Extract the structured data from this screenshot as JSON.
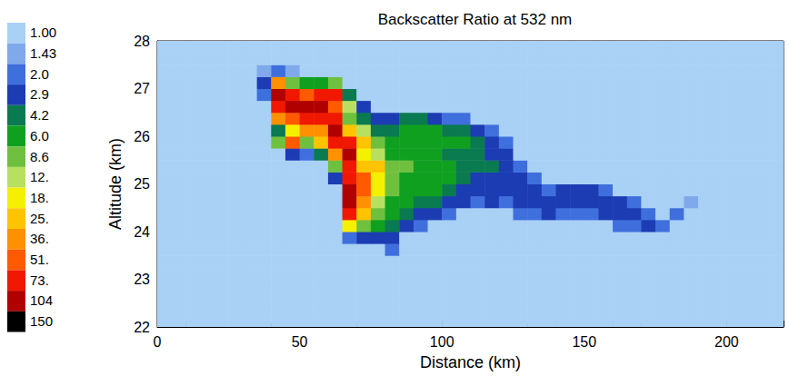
{
  "chart_data": {
    "type": "heatmap",
    "title": "Backscatter Ratio at 532 nm",
    "x_label": "Distance (km)",
    "y_label": "Altitude (km)",
    "xlim": [
      0,
      220
    ],
    "xticks": [
      0,
      50,
      100,
      150,
      200
    ],
    "ylim": [
      22,
      28
    ],
    "yticks": [
      22,
      23,
      24,
      25,
      26,
      27,
      28
    ],
    "grid": false,
    "x_edges": [
      0,
      5,
      10,
      15,
      20,
      25,
      30,
      35,
      40,
      45,
      50,
      55,
      60,
      65,
      70,
      75,
      80,
      85,
      90,
      95,
      100,
      105,
      110,
      115,
      120,
      125,
      130,
      135,
      140,
      145,
      150,
      155,
      160,
      165,
      170,
      175,
      180,
      185,
      190,
      195,
      200,
      205,
      210,
      215,
      220
    ],
    "y_edges": [
      22,
      22.25,
      22.5,
      22.75,
      23,
      23.25,
      23.5,
      23.75,
      24,
      24.25,
      24.5,
      24.75,
      25,
      25.25,
      25.5,
      25.75,
      26,
      26.25,
      26.5,
      26.75,
      27,
      27.25,
      27.5,
      27.75,
      28
    ],
    "cells": [
      [
        1,
        1,
        1,
        1,
        1,
        1,
        1,
        1,
        1,
        1,
        1,
        1,
        1,
        1,
        1,
        1,
        1,
        1,
        1,
        1,
        1,
        1,
        1,
        1,
        1,
        1,
        1,
        1,
        1,
        1,
        1,
        1,
        1,
        1,
        1,
        1,
        1,
        1,
        1,
        1,
        1,
        1,
        1,
        1
      ],
      [
        1,
        1,
        1,
        1,
        1,
        1,
        1,
        1,
        1,
        1,
        1,
        1,
        1,
        1,
        1,
        1,
        1,
        1,
        1,
        1,
        1,
        1,
        1,
        1,
        1,
        1,
        1,
        1,
        1,
        1,
        1,
        1,
        1,
        1,
        1,
        1,
        1,
        1,
        1,
        1,
        1,
        1,
        1,
        1
      ],
      [
        1,
        1,
        1,
        1,
        1,
        1,
        1,
        1,
        1,
        1,
        1,
        1,
        1,
        1,
        1,
        1,
        1,
        1,
        1,
        1,
        1,
        1,
        1,
        1,
        1,
        1,
        1,
        1,
        1,
        1,
        1,
        1,
        1,
        1,
        1,
        1,
        1,
        1,
        1,
        1,
        1,
        1,
        1,
        1
      ],
      [
        1,
        1,
        1,
        1,
        1,
        1,
        1,
        1,
        1,
        1,
        1,
        1,
        1,
        1,
        1,
        1,
        1,
        1,
        1,
        1,
        1,
        1,
        1,
        1,
        1,
        1,
        1,
        1,
        1,
        1,
        1,
        1,
        1,
        1,
        1,
        1,
        1,
        1,
        1,
        1,
        1,
        1,
        1,
        1
      ],
      [
        1,
        1,
        1,
        1,
        1,
        1,
        1,
        1,
        1,
        1,
        1,
        1,
        1,
        1,
        1,
        1,
        1,
        1,
        1,
        1,
        1,
        1,
        1,
        1,
        1,
        1,
        1,
        1,
        1,
        1,
        1,
        1,
        1,
        1,
        1,
        1,
        1,
        1,
        1,
        1,
        1,
        1,
        1,
        1
      ],
      [
        1,
        1,
        1,
        1,
        1,
        1,
        1,
        1,
        1,
        1,
        1,
        1,
        1,
        1,
        1,
        1,
        1,
        1,
        1,
        1,
        1,
        1,
        1,
        1,
        1,
        1,
        1,
        1,
        1,
        1,
        1,
        1,
        1,
        1,
        1,
        1,
        1,
        1,
        1,
        1,
        1,
        1,
        1,
        1
      ],
      [
        1,
        1,
        1,
        1,
        1,
        1,
        1,
        1,
        1,
        1,
        1,
        1,
        1,
        1,
        1,
        1,
        2.0,
        1,
        1,
        1,
        1,
        1,
        1,
        1,
        1,
        1,
        1,
        1,
        1,
        1,
        1,
        1,
        1,
        1,
        1,
        1,
        1,
        1,
        1,
        1,
        1,
        1,
        1,
        1
      ],
      [
        1,
        1,
        1,
        1,
        1,
        1,
        1,
        1,
        1,
        1,
        1,
        1,
        1,
        2.0,
        2.9,
        2.9,
        2.9,
        1,
        1,
        1,
        1,
        1,
        1,
        1,
        1,
        1,
        1,
        1,
        1,
        1,
        1,
        1,
        1,
        1,
        1,
        1,
        1,
        1,
        1,
        1,
        1,
        1,
        1,
        1
      ],
      [
        1,
        1,
        1,
        1,
        1,
        1,
        1,
        1,
        1,
        1,
        1,
        1,
        1,
        18,
        8.6,
        6.0,
        4.2,
        2.9,
        2.0,
        1,
        1,
        1,
        1,
        1,
        1,
        1,
        1,
        1,
        1,
        1,
        1,
        1,
        2.0,
        2.0,
        2.9,
        2.0,
        1,
        1,
        1,
        1,
        1,
        1,
        1,
        1
      ],
      [
        1,
        1,
        1,
        1,
        1,
        1,
        1,
        1,
        1,
        1,
        1,
        1,
        1,
        73,
        25,
        8.6,
        6.0,
        4.2,
        2.9,
        2.9,
        2.0,
        1,
        1,
        1,
        1,
        2.0,
        2.0,
        2.9,
        2.0,
        2.0,
        2.0,
        2.9,
        2.9,
        2.9,
        2.0,
        1,
        2.0,
        1,
        1,
        1,
        1,
        1,
        1,
        1
      ],
      [
        1,
        1,
        1,
        1,
        1,
        1,
        1,
        1,
        1,
        1,
        1,
        1,
        1,
        104,
        36,
        12,
        6.0,
        6.0,
        4.2,
        4.2,
        2.9,
        2.9,
        2.0,
        2.9,
        2.0,
        2.9,
        2.9,
        2.9,
        2.9,
        2.9,
        2.9,
        2.9,
        2.9,
        2.0,
        1,
        1,
        1,
        1.43,
        1,
        1,
        1,
        1,
        1,
        1
      ],
      [
        1,
        1,
        1,
        1,
        1,
        1,
        1,
        1,
        1,
        1,
        1,
        1,
        1,
        104,
        51,
        18,
        8.6,
        6.0,
        6.0,
        6.0,
        4.2,
        2.9,
        2.9,
        2.9,
        2.9,
        2.9,
        2.9,
        2.0,
        2.9,
        2.9,
        2.9,
        2.0,
        1,
        1,
        1,
        1,
        1,
        1,
        1,
        1,
        1,
        1,
        1,
        1
      ],
      [
        1,
        1,
        1,
        1,
        1,
        1,
        1,
        1,
        1,
        1,
        1,
        1,
        2.9,
        73,
        51,
        18,
        8.6,
        6.0,
        6.0,
        6.0,
        6.0,
        4.2,
        2.9,
        2.9,
        2.9,
        2.9,
        2.0,
        1,
        1,
        1,
        1,
        1,
        1,
        1,
        1,
        1,
        1,
        1,
        1,
        1,
        1,
        1,
        1,
        1
      ],
      [
        1,
        1,
        1,
        1,
        1,
        1,
        1,
        1,
        1,
        1,
        1,
        1,
        8.6,
        73,
        25,
        25,
        8.6,
        8.6,
        6.0,
        6.0,
        6.0,
        4.2,
        4.2,
        4.2,
        2.9,
        2.0,
        1,
        1,
        1,
        1,
        1,
        1,
        1,
        1,
        1,
        1,
        1,
        1,
        1,
        1,
        1,
        1,
        1,
        1
      ],
      [
        1,
        1,
        1,
        1,
        1,
        1,
        1,
        1,
        1,
        2.9,
        2.0,
        4.2,
        36,
        104,
        18,
        12,
        6.0,
        6.0,
        6.0,
        6.0,
        4.2,
        4.2,
        4.2,
        2.9,
        2.9,
        1,
        1,
        1,
        1,
        1,
        1,
        1,
        1,
        1,
        1,
        1,
        1,
        1,
        1,
        1,
        1,
        1,
        1,
        1
      ],
      [
        1,
        1,
        1,
        1,
        1,
        1,
        1,
        1,
        8.6,
        51,
        8.6,
        25,
        73,
        73,
        25,
        8.6,
        6.0,
        6.0,
        6.0,
        6.0,
        6.0,
        6.0,
        4.2,
        2.9,
        2.0,
        1,
        1,
        1,
        1,
        1,
        1,
        1,
        1,
        1,
        1,
        1,
        1,
        1,
        1,
        1,
        1,
        1,
        1,
        1
      ],
      [
        1,
        1,
        1,
        1,
        1,
        1,
        1,
        1,
        4.2,
        18,
        36,
        36,
        104,
        25,
        12,
        4.2,
        4.2,
        6.0,
        6.0,
        6.0,
        4.2,
        4.2,
        2.9,
        2.0,
        1,
        1,
        1,
        1,
        1,
        1,
        1,
        1,
        1,
        1,
        1,
        1,
        1,
        1,
        1,
        1,
        1,
        1,
        1,
        1
      ],
      [
        1,
        1,
        1,
        1,
        1,
        1,
        1,
        1,
        36,
        51,
        73,
        73,
        73,
        8.6,
        4.2,
        2.9,
        2.9,
        4.2,
        4.2,
        2.9,
        2.0,
        2.0,
        1,
        1,
        1,
        1,
        1,
        1,
        1,
        1,
        1,
        1,
        1,
        1,
        1,
        1,
        1,
        1,
        1,
        1,
        1,
        1,
        1,
        1
      ],
      [
        1,
        1,
        1,
        1,
        1,
        1,
        1,
        1,
        73,
        104,
        104,
        104,
        51,
        12,
        2.9,
        1,
        1,
        1,
        1,
        1,
        1,
        1,
        1,
        1,
        1,
        1,
        1,
        1,
        1,
        1,
        1,
        1,
        1,
        1,
        1,
        1,
        1,
        1,
        1,
        1,
        1,
        1,
        1,
        1
      ],
      [
        1,
        1,
        1,
        1,
        1,
        1,
        1,
        2.0,
        104,
        73,
        51,
        73,
        73,
        4.2,
        1,
        1,
        1,
        1,
        1,
        1,
        1,
        1,
        1,
        1,
        1,
        1,
        1,
        1,
        1,
        1,
        1,
        1,
        1,
        1,
        1,
        1,
        1,
        1,
        1,
        1,
        1,
        1,
        1,
        1
      ],
      [
        1,
        1,
        1,
        1,
        1,
        1,
        1,
        2.9,
        36,
        8.6,
        6.0,
        6.0,
        8.6,
        1,
        1,
        1,
        1,
        1,
        1,
        1,
        1,
        1,
        1,
        1,
        1,
        1,
        1,
        1,
        1,
        1,
        1,
        1,
        1,
        1,
        1,
        1,
        1,
        1,
        1,
        1,
        1,
        1,
        1,
        1
      ],
      [
        1,
        1,
        1,
        1,
        1,
        1,
        1,
        1.43,
        2.0,
        1.43,
        1,
        1,
        1,
        1,
        1,
        1,
        1,
        1,
        1,
        1,
        1,
        1,
        1,
        1,
        1,
        1,
        1,
        1,
        1,
        1,
        1,
        1,
        1,
        1,
        1,
        1,
        1,
        1,
        1,
        1,
        1,
        1,
        1,
        1
      ],
      [
        1,
        1,
        1,
        1,
        1,
        1,
        1,
        1,
        1,
        1,
        1,
        1,
        1,
        1,
        1,
        1,
        1,
        1,
        1,
        1,
        1,
        1,
        1,
        1,
        1,
        1,
        1,
        1,
        1,
        1,
        1,
        1,
        1,
        1,
        1,
        1,
        1,
        1,
        1,
        1,
        1,
        1,
        1,
        1
      ],
      [
        1,
        1,
        1,
        1,
        1,
        1,
        1,
        1,
        1,
        1,
        1,
        1,
        1,
        1,
        1,
        1,
        1,
        1,
        1,
        1,
        1,
        1,
        1,
        1,
        1,
        1,
        1,
        1,
        1,
        1,
        1,
        1,
        1,
        1,
        1,
        1,
        1,
        1,
        1,
        1,
        1,
        1,
        1,
        1
      ]
    ],
    "colorbar": {
      "range": [
        1,
        150
      ],
      "ticks": [
        {
          "value": 1,
          "label": "1.00"
        },
        1.43,
        {
          "value": 2,
          "label": "2.0"
        },
        2.9,
        4.2,
        {
          "value": 6,
          "label": "6.0"
        },
        8.6,
        {
          "value": 12,
          "label": "12."
        },
        {
          "value": 18,
          "label": "18."
        },
        {
          "value": 25,
          "label": "25."
        },
        {
          "value": 36,
          "label": "36."
        },
        {
          "value": 51,
          "label": "51."
        },
        {
          "value": 73,
          "label": "73."
        },
        104,
        150
      ],
      "colors": [
        "#a9d0f5",
        "#7fa9ea",
        "#3f6fdc",
        "#1c3cb4",
        "#0a7a50",
        "#10a020",
        "#70c040",
        "#b8e060",
        "#f5f000",
        "#ffc400",
        "#ff9000",
        "#ff5a00",
        "#f01800",
        "#b00000",
        "#000000"
      ]
    }
  }
}
